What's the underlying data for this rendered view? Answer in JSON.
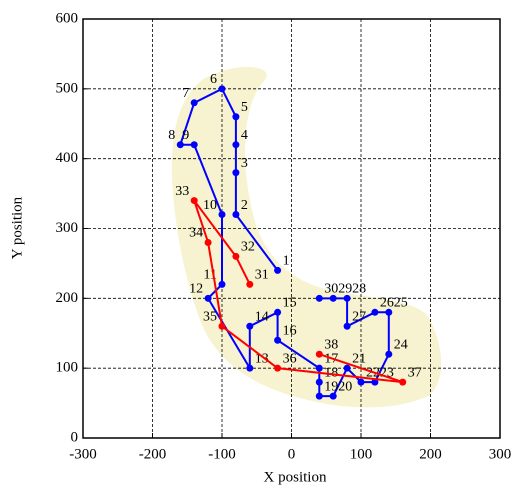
{
  "chart_data": {
    "type": "line",
    "x_label": "X position",
    "y_label": "Y position",
    "xlim": [
      -300,
      300
    ],
    "ylim": [
      0,
      600
    ],
    "xticks": [
      -300,
      -200,
      -100,
      0,
      100,
      200,
      300
    ],
    "yticks": [
      0,
      100,
      200,
      300,
      400,
      500,
      600
    ],
    "grid": true,
    "series": [
      {
        "color": "#0000ff",
        "x": [
          -20,
          -80,
          -80,
          -80,
          -80,
          -100,
          -140,
          -160,
          -140,
          -100,
          -100,
          -120,
          -60,
          -60,
          -20,
          -20,
          40,
          40,
          40,
          60,
          80,
          100,
          120,
          140,
          140,
          120,
          80,
          80,
          60,
          40
        ],
        "values": [
          240,
          320,
          380,
          420,
          460,
          500,
          480,
          420,
          420,
          320,
          220,
          200,
          100,
          160,
          180,
          140,
          100,
          80,
          60,
          60,
          100,
          80,
          80,
          120,
          180,
          180,
          160,
          200,
          200,
          200
        ],
        "point_labels": [
          "1",
          "2",
          "3",
          "4",
          "5",
          "6",
          "7",
          "8",
          "9",
          "10",
          "11",
          "12",
          "13",
          "14",
          "15",
          "16",
          "17",
          "18",
          "19",
          "20",
          "21",
          "22",
          "23",
          "24",
          "25",
          "26",
          "27",
          "28",
          "29",
          "30"
        ]
      },
      {
        "color": "#ff0000",
        "x": [
          -60,
          -80,
          -140,
          -120,
          -100,
          -20,
          160,
          40
        ],
        "values": [
          220,
          260,
          340,
          280,
          160,
          100,
          80,
          120
        ],
        "point_labels": [
          "31",
          "32",
          "33",
          "34",
          "35",
          "36",
          "37",
          "38"
        ]
      }
    ]
  }
}
